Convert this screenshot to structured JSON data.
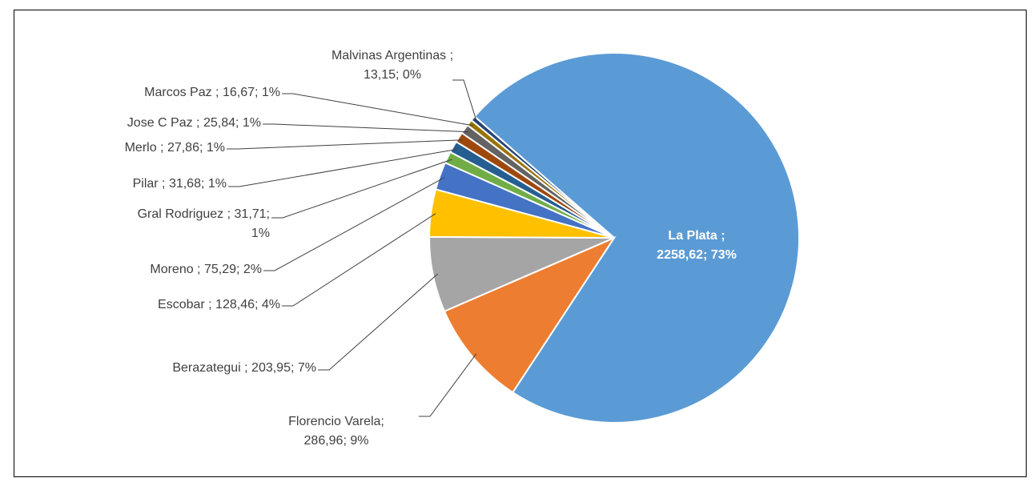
{
  "chart_data": {
    "type": "pie",
    "values": [
      2258.62,
      286.96,
      203.95,
      128.46,
      75.29,
      31.71,
      31.68,
      27.86,
      25.84,
      16.67,
      13.15
    ],
    "value_labels": [
      [
        "La Plata ;",
        "2258,62; 73%"
      ],
      [
        "Florencio Varela;",
        "286,96; 9%"
      ],
      [
        "Berazategui ; 203,95; 7%"
      ],
      [
        "Escobar ; 128,46; 4%"
      ],
      [
        "Moreno ; 75,29; 2%"
      ],
      [
        "Gral Rodriguez ; 31,71;",
        "1%"
      ],
      [
        "Pilar ; 31,68; 1%"
      ],
      [
        "Merlo ; 27,86; 1%"
      ],
      [
        "Jose C Paz ; 25,84; 1%"
      ],
      [
        "Marcos Paz ; 16,67; 1%"
      ],
      [
        "Malvinas Argentinas ;",
        "13,15; 0%"
      ]
    ],
    "colors": [
      "#5b9bd5",
      "#ed7d31",
      "#a5a5a5",
      "#ffc000",
      "#4472c4",
      "#70ad47",
      "#255e91",
      "#9e480e",
      "#636363",
      "#997300",
      "#264478"
    ],
    "start_angle": 311
  }
}
